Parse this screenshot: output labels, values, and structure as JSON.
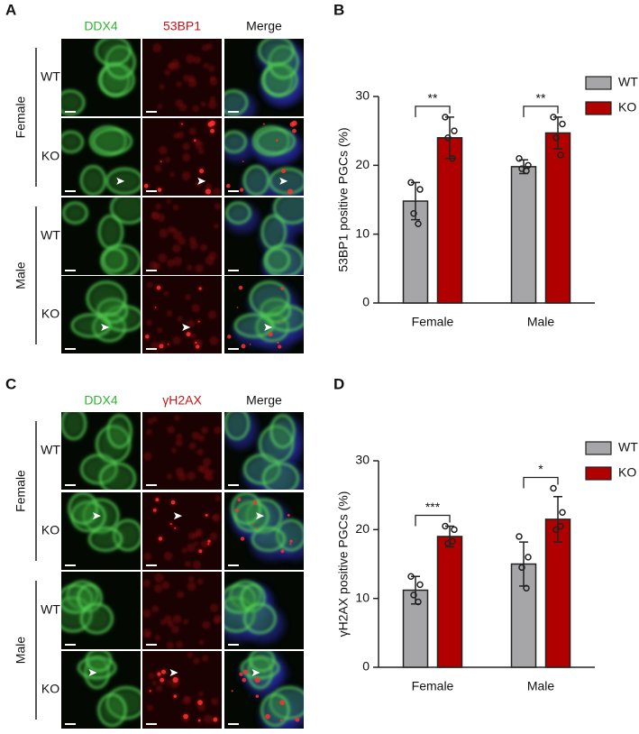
{
  "image_figures": [
    {
      "panel_label": "A",
      "columns": [
        "DDX4",
        "53BP1",
        "Merge"
      ],
      "groups": [
        {
          "name": "Female",
          "rows": [
            "WT",
            "KO"
          ]
        },
        {
          "name": "Male",
          "rows": [
            "WT",
            "KO"
          ]
        }
      ]
    },
    {
      "panel_label": "C",
      "columns": [
        "DDX4",
        "γH2AX",
        "Merge"
      ],
      "groups": [
        {
          "name": "Female",
          "rows": [
            "WT",
            "KO"
          ]
        },
        {
          "name": "Male",
          "rows": [
            "WT",
            "KO"
          ]
        }
      ]
    }
  ],
  "chart_data": [
    {
      "type": "bar",
      "panel_label": "B",
      "y_label": "53BP1 positive PGCs (%)",
      "categories": [
        "Female",
        "Male"
      ],
      "ylim": [
        0,
        30
      ],
      "yticks": [
        0,
        10,
        20,
        30
      ],
      "legend": "top-right",
      "series": [
        {
          "name": "WT",
          "color": "#a6a6a8",
          "values": [
            14.8,
            19.8
          ],
          "errors": [
            2.7,
            1.0
          ],
          "points": [
            [
              17.5,
              16.5,
              13,
              11.5
            ],
            [
              21,
              20,
              19.5,
              19.2
            ]
          ]
        },
        {
          "name": "KO",
          "color": "#b00000",
          "values": [
            24.0,
            24.7
          ],
          "errors": [
            3.0,
            2.3
          ],
          "points": [
            [
              27,
              25,
              24,
              21
            ],
            [
              27,
              26,
              24,
              21.5
            ]
          ]
        }
      ],
      "annotations": [
        "**",
        "**"
      ]
    },
    {
      "type": "bar",
      "panel_label": "D",
      "y_label": "γH2AX positive PGCs (%)",
      "categories": [
        "Female",
        "Male"
      ],
      "ylim": [
        0,
        30
      ],
      "yticks": [
        0,
        10,
        20,
        30
      ],
      "legend": "top-right",
      "series": [
        {
          "name": "WT",
          "color": "#a6a6a8",
          "values": [
            11.2,
            15.0
          ],
          "errors": [
            2.0,
            3.2
          ],
          "points": [
            [
              13.2,
              12,
              10.5,
              9.5
            ],
            [
              19,
              16,
              14.5,
              11.5
            ]
          ]
        },
        {
          "name": "KO",
          "color": "#b00000",
          "values": [
            19.0,
            21.5
          ],
          "errors": [
            1.5,
            3.3
          ],
          "points": [
            [
              20.5,
              20,
              18,
              18.3
            ],
            [
              26,
              22.5,
              20,
              20.5
            ]
          ]
        }
      ],
      "annotations": [
        "***",
        "*"
      ]
    }
  ]
}
